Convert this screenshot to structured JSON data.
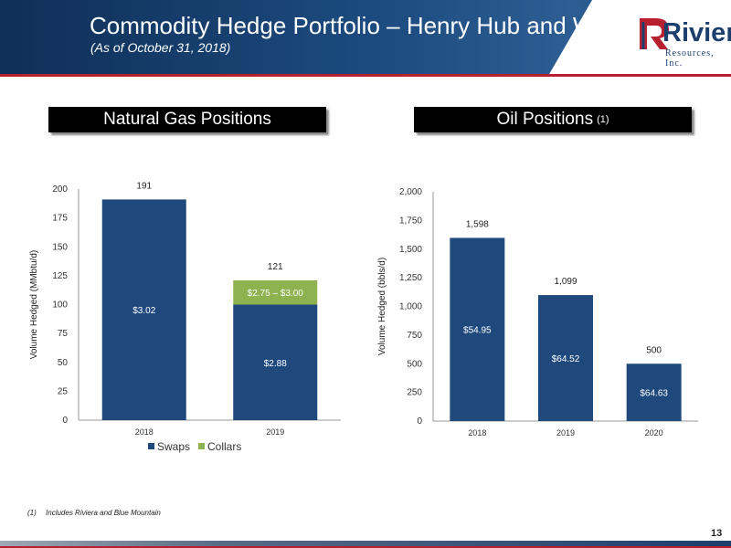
{
  "header": {
    "title": "Commodity Hedge Portfolio – Henry Hub and WTI",
    "subtitle": "(As of October 31, 2018)"
  },
  "logo": {
    "name": "Riviera",
    "tagline": "Resources, Inc."
  },
  "sections": {
    "gas_title": "Natural Gas Positions",
    "oil_title": "Oil Positions",
    "oil_note_ref": "(1)"
  },
  "colors": {
    "swaps": "#1f497d",
    "collars": "#8db24f",
    "brand_red": "#b7202e",
    "brand_navy": "#1c3f6d"
  },
  "chart_data": [
    {
      "type": "bar",
      "stacked": true,
      "title": "Natural Gas Positions",
      "ylabel": "Volume Hedged (MMbtu/d)",
      "xlabel": "",
      "categories": [
        "2018",
        "2019"
      ],
      "ylim": [
        0,
        200
      ],
      "yticks": [
        "0",
        "25",
        "50",
        "75",
        "100",
        "125",
        "150",
        "175",
        "200"
      ],
      "series": [
        {
          "name": "Swaps",
          "color": "#1f497d",
          "values": [
            191,
            100
          ],
          "labels": [
            "$3.02",
            "$2.88"
          ]
        },
        {
          "name": "Collars",
          "color": "#8db24f",
          "values": [
            0,
            21
          ],
          "labels": [
            "",
            "$2.75 – $3.00"
          ]
        }
      ],
      "totals": [
        "191",
        "121"
      ],
      "legend": "bottom"
    },
    {
      "type": "bar",
      "title": "Oil Positions",
      "ylabel": "Volume Hedged (bbls/d)",
      "xlabel": "",
      "categories": [
        "2018",
        "2019",
        "2020"
      ],
      "ylim": [
        0,
        2000
      ],
      "yticks": [
        "0",
        "250",
        "500",
        "750",
        "1,000",
        "1,250",
        "1,500",
        "1,750",
        "2,000"
      ],
      "series": [
        {
          "name": "Swaps",
          "color": "#1f497d",
          "values": [
            1598,
            1099,
            500
          ],
          "labels": [
            "$54.95",
            "$64.52",
            "$64.63"
          ]
        }
      ],
      "totals": [
        "1,598",
        "1,099",
        "500"
      ]
    }
  ],
  "footnote": {
    "number": "(1)",
    "text": "Includes Riviera and Blue Mountain"
  },
  "page_number": "13"
}
